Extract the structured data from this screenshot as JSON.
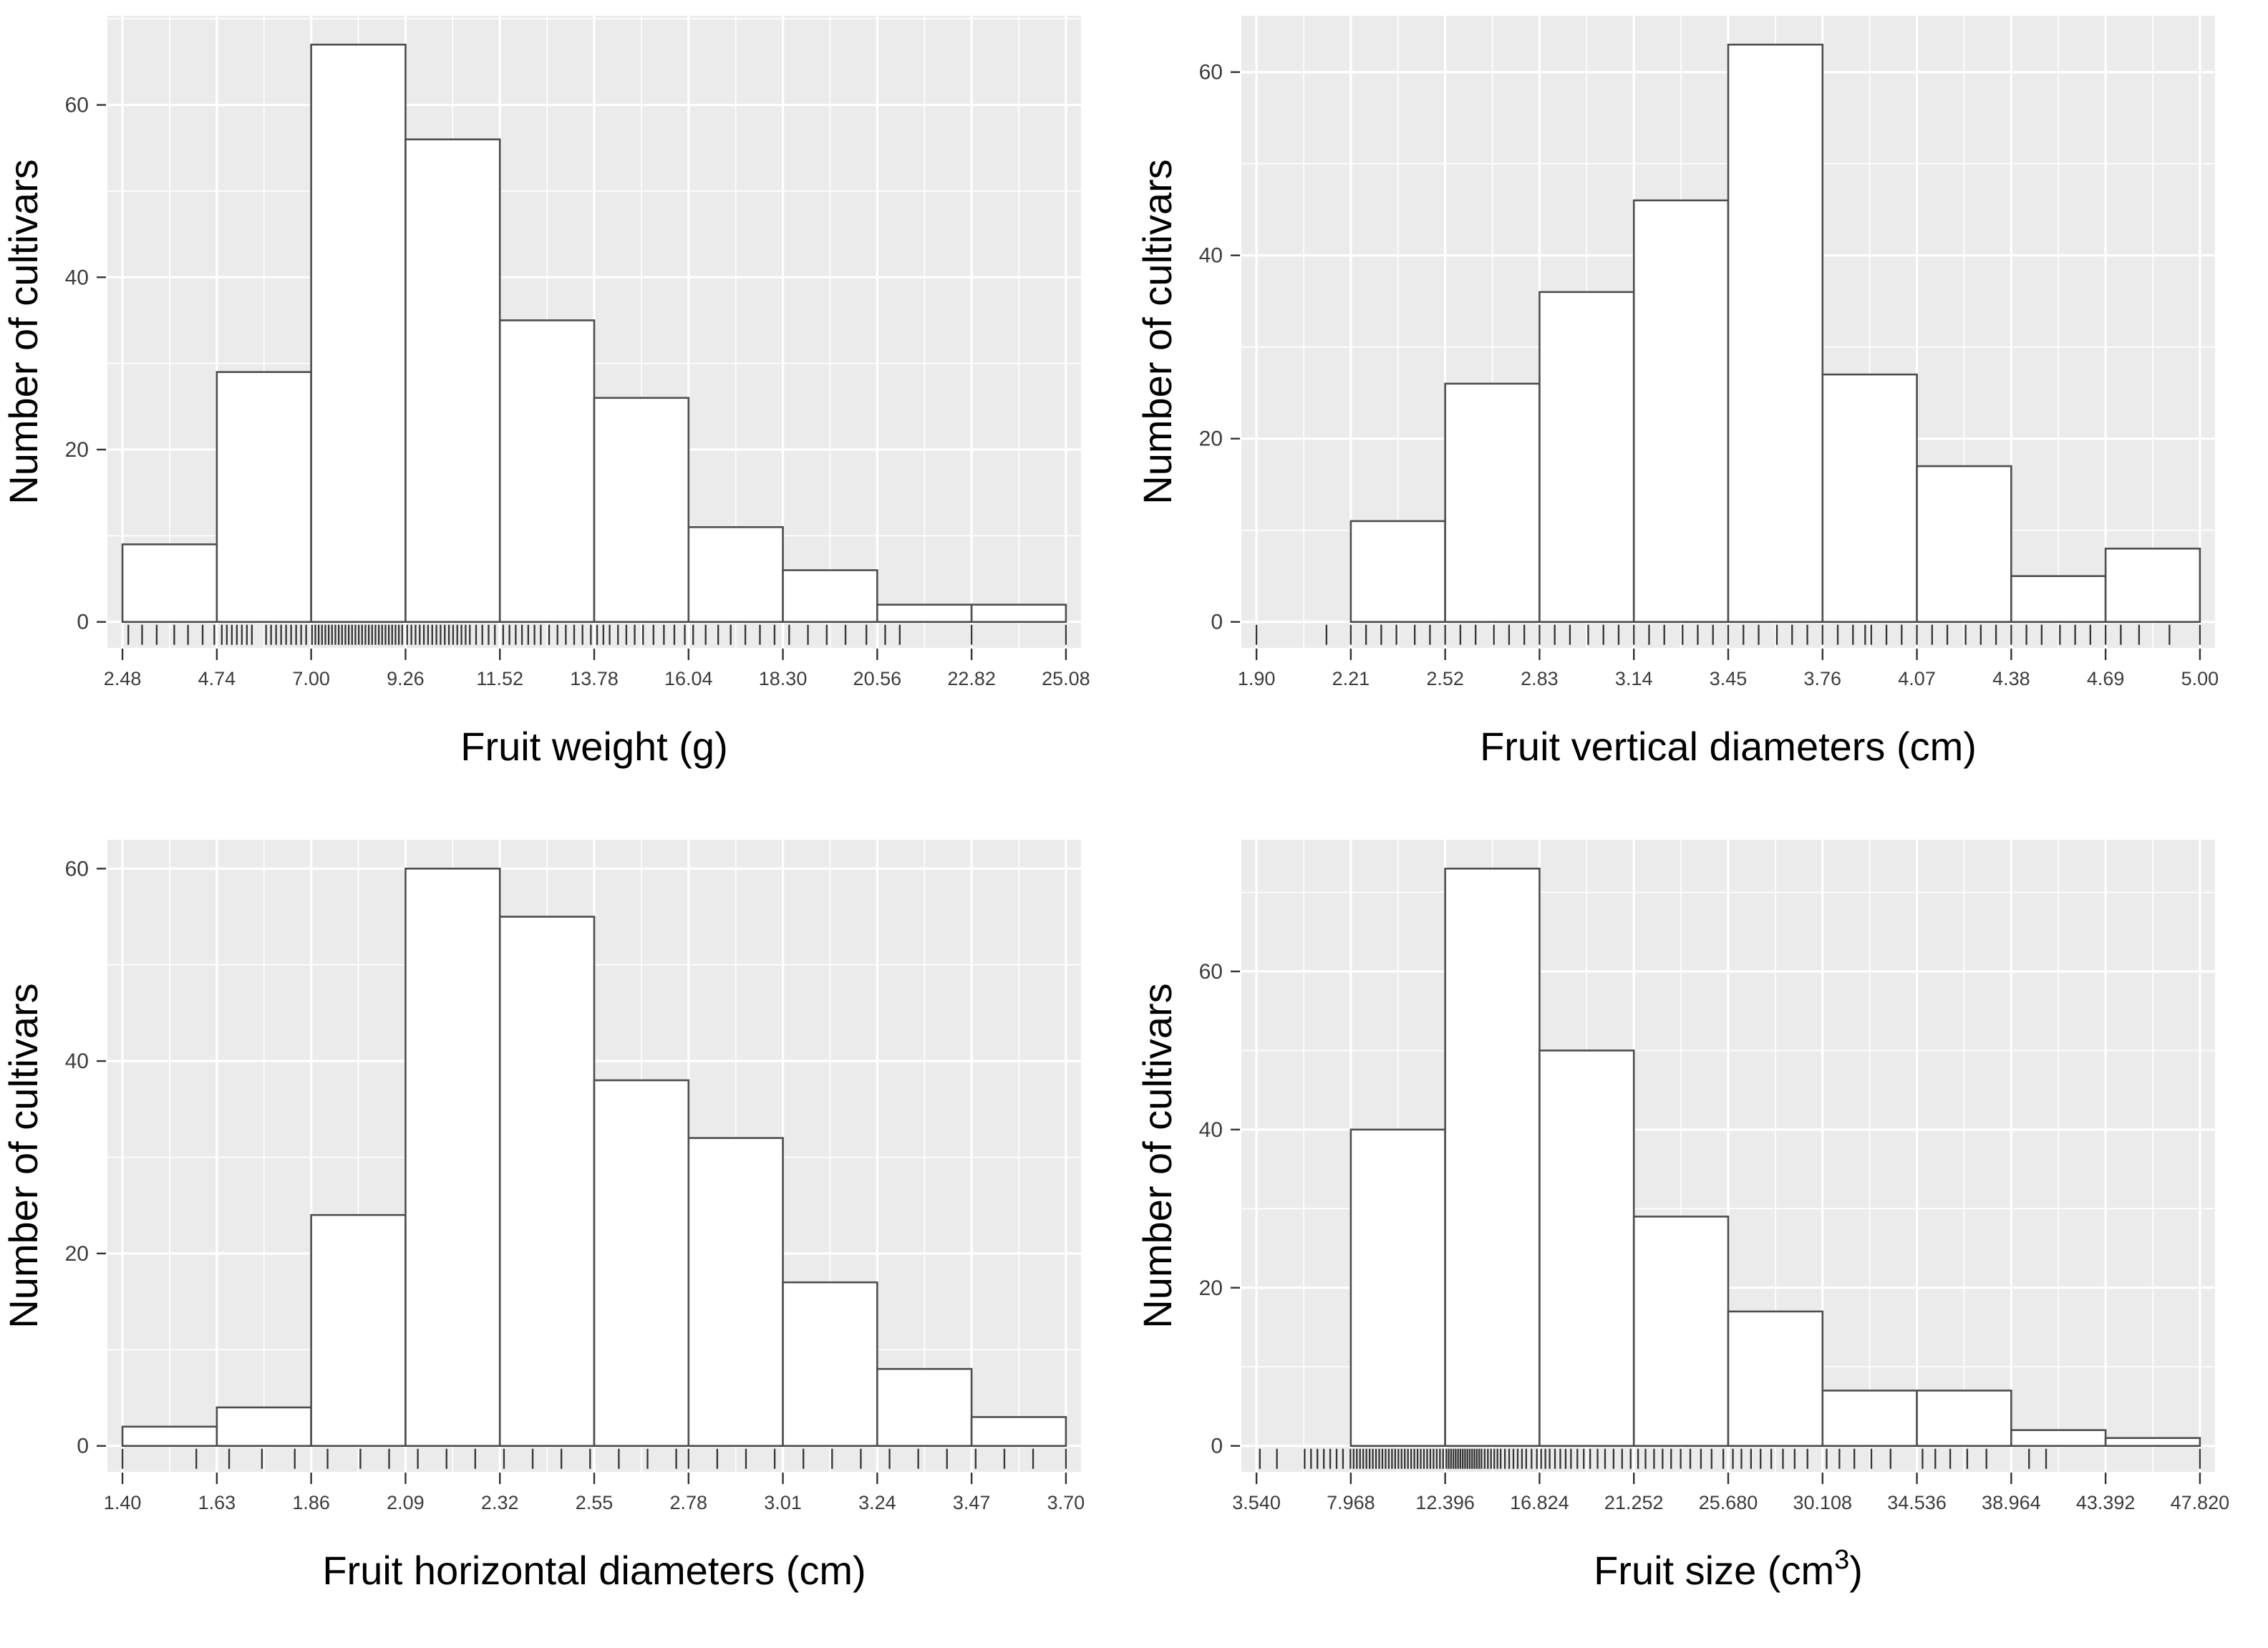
{
  "page": {
    "background": "#ffffff"
  },
  "style": {
    "panel_bg": "#EBEBEB",
    "bar_fill": "#FFFFFF",
    "bar_stroke": "#4D4D4D",
    "grid_major": "#FFFFFF",
    "grid_minor": "#FFFFFF",
    "axis_tick_color": "#333333",
    "tick_label_color": "#3C3C3C",
    "title_color": "#000000",
    "rug_color": "#1A1A1A"
  },
  "chart_data": [
    {
      "type": "bar",
      "subtype": "histogram",
      "panel": "top-left",
      "title": "",
      "xlabel": "Fruit weight (g)",
      "ylabel": "Number of cultivars",
      "x_ticks": [
        "2.48",
        "4.74",
        "7.00",
        "9.26",
        "11.52",
        "13.78",
        "16.04",
        "18.30",
        "20.56",
        "22.82",
        "25.08"
      ],
      "y_ticks": [
        0,
        20,
        40,
        60
      ],
      "ylim": [
        0,
        70
      ],
      "grid": true,
      "legend": "none",
      "bin_edges": [
        2.48,
        4.74,
        7.0,
        9.26,
        11.52,
        13.78,
        16.04,
        18.3,
        20.56,
        22.82,
        25.08
      ],
      "counts": [
        9,
        29,
        67,
        56,
        35,
        26,
        11,
        6,
        2,
        2
      ],
      "rug": [
        2.62,
        2.95,
        3.3,
        3.72,
        4.05,
        4.4,
        4.68,
        4.86,
        4.98,
        5.1,
        5.22,
        5.34,
        5.46,
        5.58,
        5.92,
        6.04,
        6.16,
        6.28,
        6.4,
        6.52,
        6.64,
        6.76,
        6.88,
        7.02,
        7.1,
        7.18,
        7.26,
        7.34,
        7.42,
        7.5,
        7.58,
        7.66,
        7.74,
        7.82,
        7.9,
        7.98,
        8.06,
        8.14,
        8.22,
        8.3,
        8.38,
        8.46,
        8.54,
        8.62,
        8.7,
        8.78,
        8.86,
        8.94,
        9.02,
        9.1,
        9.18,
        9.3,
        9.4,
        9.5,
        9.6,
        9.7,
        9.8,
        9.9,
        10.0,
        10.1,
        10.2,
        10.3,
        10.4,
        10.5,
        10.6,
        10.7,
        10.8,
        10.95,
        11.1,
        11.25,
        11.4,
        11.6,
        11.75,
        11.9,
        12.05,
        12.2,
        12.35,
        12.5,
        12.7,
        12.9,
        13.1,
        13.3,
        13.5,
        13.7,
        13.85,
        14.0,
        14.15,
        14.35,
        14.55,
        14.75,
        14.95,
        15.2,
        15.45,
        15.7,
        15.95,
        16.15,
        16.45,
        16.75,
        17.05,
        17.4,
        17.75,
        18.1,
        18.45,
        18.9,
        19.35,
        19.8,
        20.3,
        20.75,
        21.1,
        22.82,
        25.08
      ]
    },
    {
      "type": "bar",
      "subtype": "histogram",
      "panel": "top-right",
      "title": "",
      "xlabel": "Fruit vertical diameters (cm)",
      "ylabel": "Number of cultivars",
      "x_ticks": [
        "1.90",
        "2.21",
        "2.52",
        "2.83",
        "3.14",
        "3.45",
        "3.76",
        "4.07",
        "4.38",
        "4.69",
        "5.00"
      ],
      "y_ticks": [
        0,
        20,
        40,
        60
      ],
      "ylim": [
        0,
        66
      ],
      "grid": true,
      "legend": "none",
      "bin_edges": [
        2.21,
        2.52,
        2.83,
        3.14,
        3.45,
        3.76,
        4.07,
        4.38,
        4.69,
        5.0
      ],
      "counts": [
        11,
        26,
        36,
        46,
        63,
        27,
        17,
        5,
        8
      ],
      "rug": [
        1.9,
        2.13,
        2.21,
        2.26,
        2.31,
        2.36,
        2.42,
        2.47,
        2.52,
        2.57,
        2.62,
        2.68,
        2.73,
        2.78,
        2.83,
        2.88,
        2.93,
        2.99,
        3.04,
        3.09,
        3.14,
        3.19,
        3.24,
        3.3,
        3.35,
        3.4,
        3.45,
        3.5,
        3.55,
        3.61,
        3.66,
        3.71,
        3.76,
        3.81,
        3.86,
        3.9,
        3.92,
        3.97,
        4.02,
        4.07,
        4.12,
        4.17,
        4.23,
        4.28,
        4.33,
        4.38,
        4.43,
        4.48,
        4.54,
        4.59,
        4.64,
        4.69,
        4.74,
        4.8,
        4.9,
        5.0
      ]
    },
    {
      "type": "bar",
      "subtype": "histogram",
      "panel": "bottom-left",
      "title": "",
      "xlabel": "Fruit horizontal diameters (cm)",
      "ylabel": "Number of cultivars",
      "x_ticks": [
        "1.40",
        "1.63",
        "1.86",
        "2.09",
        "2.32",
        "2.55",
        "2.78",
        "3.01",
        "3.24",
        "3.47",
        "3.70"
      ],
      "y_ticks": [
        0,
        20,
        40,
        60
      ],
      "ylim": [
        0,
        63
      ],
      "grid": true,
      "legend": "none",
      "bin_edges": [
        1.4,
        1.63,
        1.86,
        2.09,
        2.32,
        2.55,
        2.78,
        3.01,
        3.24,
        3.47,
        3.7
      ],
      "counts": [
        2,
        4,
        24,
        60,
        55,
        38,
        32,
        17,
        8,
        3
      ],
      "rug": [
        1.4,
        1.58,
        1.66,
        1.74,
        1.82,
        1.9,
        1.98,
        2.05,
        2.12,
        2.19,
        2.26,
        2.33,
        2.4,
        2.47,
        2.54,
        2.61,
        2.68,
        2.75,
        2.78,
        2.85,
        2.92,
        2.99,
        3.06,
        3.13,
        3.2,
        3.27,
        3.34,
        3.41,
        3.48,
        3.55,
        3.62,
        3.7
      ]
    },
    {
      "type": "bar",
      "subtype": "histogram",
      "panel": "bottom-right",
      "title": "",
      "xlabel": "Fruit size (cm³)",
      "ylabel": "Number of cultivars",
      "x_ticks": [
        "3.540",
        "7.968",
        "12.396",
        "16.824",
        "21.252",
        "25.680",
        "30.108",
        "34.536",
        "38.964",
        "43.392",
        "47.820"
      ],
      "y_ticks": [
        0,
        20,
        40,
        60
      ],
      "ylim": [
        0,
        77
      ],
      "grid": true,
      "legend": "none",
      "bin_edges": [
        7.968,
        12.396,
        16.824,
        21.252,
        25.68,
        30.108,
        34.536,
        38.964,
        43.392,
        47.82
      ],
      "counts": [
        40,
        73,
        50,
        29,
        17,
        7,
        7,
        2,
        1
      ],
      "rug": [
        3.7,
        4.5,
        5.8,
        6.1,
        6.4,
        6.7,
        7.0,
        7.3,
        7.6,
        7.95,
        8.1,
        8.25,
        8.4,
        8.55,
        8.7,
        8.85,
        9.0,
        9.15,
        9.3,
        9.45,
        9.6,
        9.75,
        9.9,
        10.05,
        10.2,
        10.35,
        10.5,
        10.65,
        10.8,
        10.95,
        11.1,
        11.25,
        11.4,
        11.55,
        11.7,
        11.85,
        12.0,
        12.15,
        12.3,
        12.45,
        12.56,
        12.67,
        12.78,
        12.89,
        13.0,
        13.11,
        13.22,
        13.33,
        13.44,
        13.55,
        13.66,
        13.77,
        13.88,
        13.99,
        14.1,
        14.25,
        14.4,
        14.55,
        14.7,
        14.85,
        15.0,
        15.2,
        15.4,
        15.6,
        15.8,
        16.0,
        16.2,
        16.45,
        16.7,
        16.9,
        17.1,
        17.3,
        17.55,
        17.8,
        18.05,
        18.3,
        18.6,
        18.9,
        19.2,
        19.55,
        19.9,
        20.3,
        20.7,
        21.1,
        21.45,
        21.8,
        22.2,
        22.6,
        23.0,
        23.45,
        23.9,
        24.4,
        24.9,
        25.45,
        25.9,
        26.3,
        26.75,
        27.2,
        27.7,
        28.25,
        28.8,
        29.4,
        30.3,
        30.9,
        31.6,
        32.4,
        33.3,
        34.8,
        35.4,
        36.1,
        36.9,
        37.8,
        39.8,
        40.6,
        47.82
      ]
    }
  ]
}
